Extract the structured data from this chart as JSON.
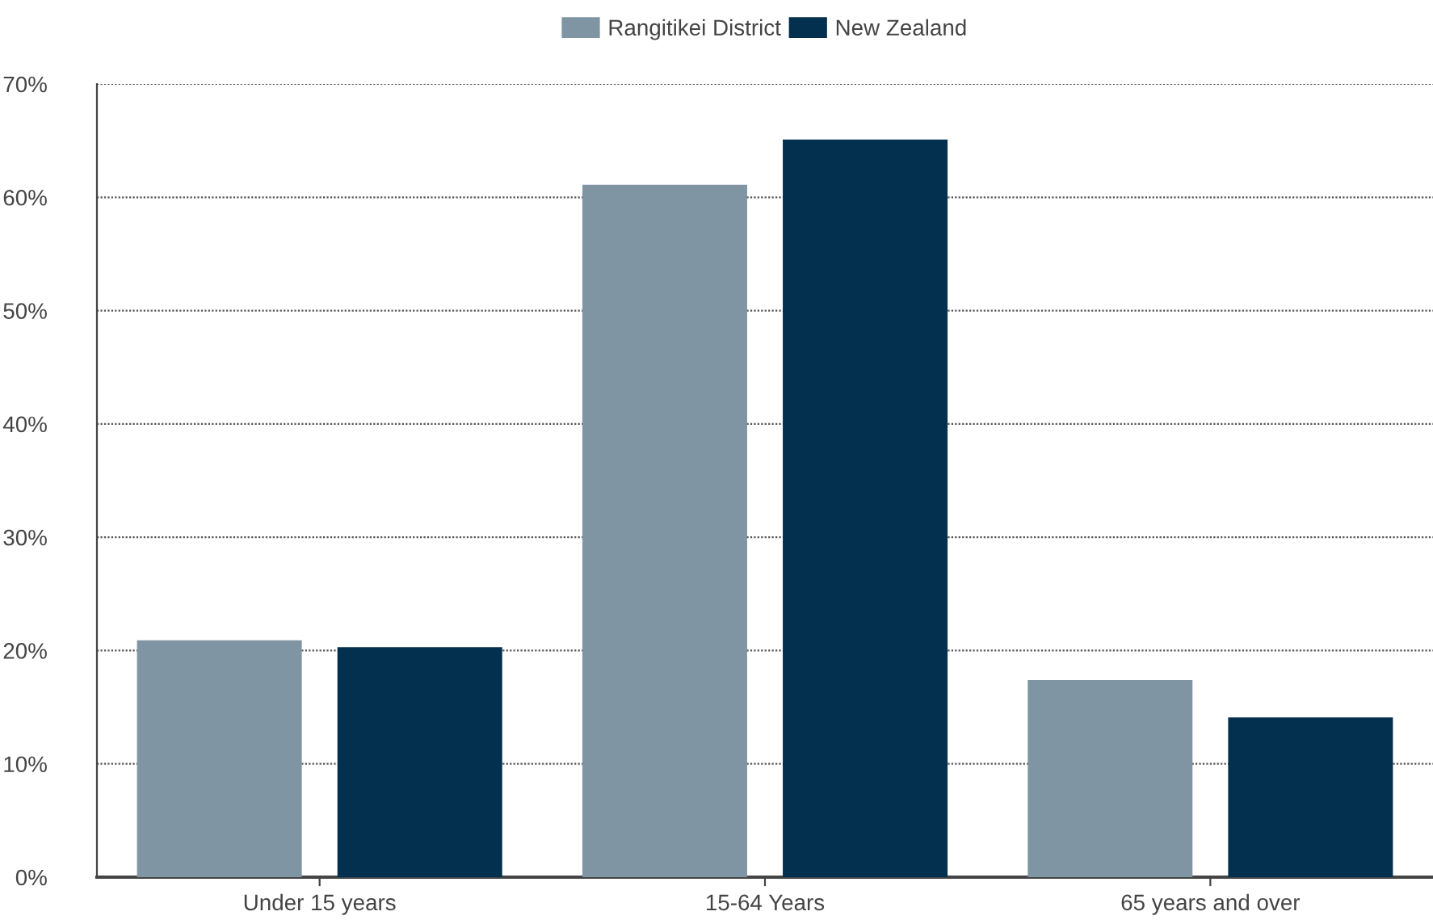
{
  "chart_data": {
    "type": "bar",
    "categories": [
      "Under 15 years",
      "15-64 Years",
      "65 years and over"
    ],
    "series": [
      {
        "name": "Rangitikei District",
        "color": "#7f95a3",
        "values": [
          20.9,
          61.1,
          17.4
        ]
      },
      {
        "name": "New Zealand",
        "color": "#03304f",
        "values": [
          20.3,
          65.1,
          14.1
        ]
      }
    ],
    "ylim": [
      0,
      70
    ],
    "yticks": [
      {
        "value": 0,
        "label": "0%"
      },
      {
        "value": 10,
        "label": "10%"
      },
      {
        "value": 20,
        "label": "20%"
      },
      {
        "value": 30,
        "label": "30%"
      },
      {
        "value": 40,
        "label": "40%"
      },
      {
        "value": 50,
        "label": "50%"
      },
      {
        "value": 60,
        "label": "60%"
      },
      {
        "value": 70,
        "label": "70%"
      }
    ],
    "grid": "y",
    "legend": "top"
  }
}
